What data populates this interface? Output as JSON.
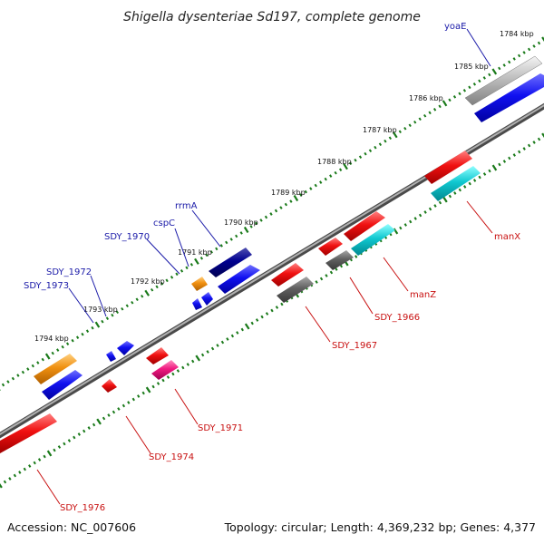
{
  "title": "Shigella dysenteriae Sd197, complete genome",
  "footer": {
    "accession": "Accession: NC_007606",
    "topology": "Topology: circular; Length: 4,369,232 bp; Genes: 4,377"
  },
  "ticks": [
    "1784 kbp",
    "1785 kbp",
    "1786 kbp",
    "1787 kbp",
    "1788 kbp",
    "1789 kbp",
    "1790 kbp",
    "1791 kbp",
    "1792 kbp",
    "1793 kbp",
    "1794 kbp"
  ],
  "labels": {
    "yoaE": "yoaE",
    "rrmA": "rrmA",
    "cspC": "cspC",
    "sdy1970": "SDY_1970",
    "sdy1972": "SDY_1972",
    "sdy1973": "SDY_1973",
    "manX": "manX",
    "manZ": "manZ",
    "sdy1966": "SDY_1966",
    "sdy1967": "SDY_1967",
    "sdy1971": "SDY_1971",
    "sdy1974": "SDY_1974",
    "sdy1976": "SDY_1976"
  },
  "colors": {
    "red": "#e81010",
    "blue": "#1010e0",
    "navy": "#000080",
    "grey": "#b0b0b0",
    "darkgrey": "#5a5a5a",
    "orange": "#f0900a",
    "cyan": "#10c0c8",
    "pink": "#e81878",
    "tick_green": "#1a7a1a",
    "backbone": "#7a7a7a",
    "label_blue": "#1a1aa8",
    "label_red": "#c81010"
  }
}
